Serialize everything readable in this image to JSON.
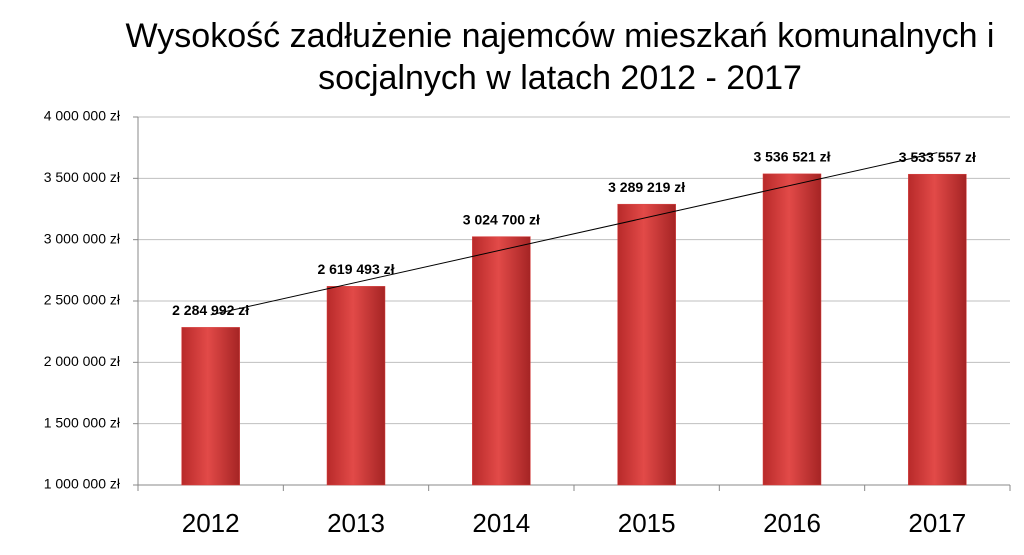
{
  "chart_data": {
    "type": "bar",
    "title": [
      "Wysokość zadłużenie najemców  mieszkań komunalnych i",
      "socjalnych w latach 2012 - 2017"
    ],
    "categories": [
      "2012",
      "2013",
      "2014",
      "2015",
      "2016",
      "2017"
    ],
    "values": [
      2284992,
      2619493,
      3024700,
      3289219,
      3536521,
      3533557
    ],
    "value_labels": [
      "2 284 992 zł",
      "2 619 493 zł",
      "3 024 700 zł",
      "3 289 219 zł",
      "3 536 521 zł",
      "3 533 557 zł"
    ],
    "color": "#d9403f",
    "ylim": [
      1000000,
      4000000
    ],
    "yticks": [
      {
        "value": 1000000,
        "label": "1 000 000 zł"
      },
      {
        "value": 1500000,
        "label": "1 500 000 zł"
      },
      {
        "value": 2000000,
        "label": "2 000 000 zł"
      },
      {
        "value": 2500000,
        "label": "2 500 000 zł"
      },
      {
        "value": 3000000,
        "label": "3 000 000 zł"
      },
      {
        "value": 3500000,
        "label": "3 500 000 zł"
      },
      {
        "value": 4000000,
        "label": "4 000 000 zł"
      }
    ],
    "grid": true,
    "trendline": true
  }
}
